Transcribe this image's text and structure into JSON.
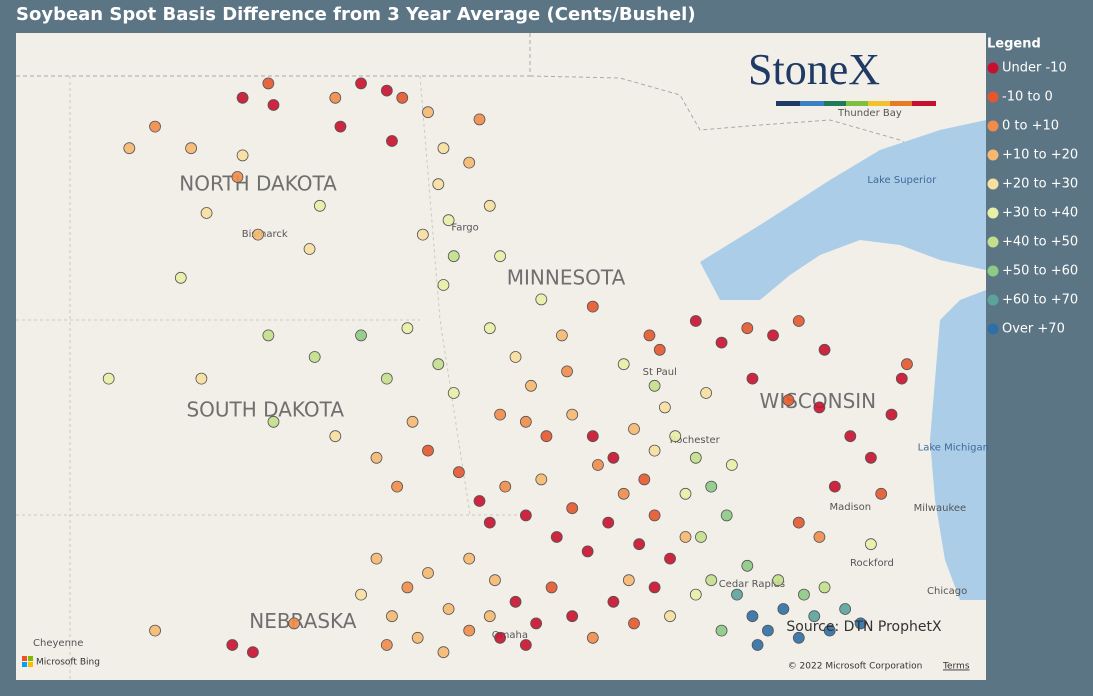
{
  "title": "Soybean Spot Basis Difference from 3 Year Average (Cents/Bushel)",
  "logo": "StoneX",
  "legend": {
    "title": "Legend",
    "items": [
      {
        "label": "Under -10",
        "color": "#c8102e"
      },
      {
        "label": "-10 to 0",
        "color": "#e4572e"
      },
      {
        "label": "0 to +10",
        "color": "#ef8c4b"
      },
      {
        "label": "+10 to +20",
        "color": "#f6b870"
      },
      {
        "label": "+20 to +30",
        "color": "#f7df9f"
      },
      {
        "label": "+30 to +40",
        "color": "#e8f0a6"
      },
      {
        "label": "+40 to +50",
        "color": "#c3df8c"
      },
      {
        "label": "+50 to +60",
        "color": "#8dca86"
      },
      {
        "label": "+60 to +70",
        "color": "#5ba39c"
      },
      {
        "label": "Over +70",
        "color": "#2d6fa6"
      }
    ]
  },
  "map": {
    "labels": [
      {
        "text": "NORTH DAKOTA",
        "lon": -100.5,
        "lat": 47.49,
        "kind": "state"
      },
      {
        "text": "SOUTH DAKOTA",
        "lon": -100.36,
        "lat": 44.35,
        "kind": "state"
      },
      {
        "text": "MINNESOTA",
        "lon": -94.52,
        "lat": 46.18,
        "kind": "state"
      },
      {
        "text": "WISCONSIN",
        "lon": -89.63,
        "lat": 44.47,
        "kind": "state"
      },
      {
        "text": "NEBRASKA",
        "lon": -99.63,
        "lat": 41.41,
        "kind": "state"
      },
      {
        "text": "Bismarck",
        "lon": -100.37,
        "lat": 46.81,
        "kind": "city"
      },
      {
        "text": "Fargo",
        "lon": -96.48,
        "lat": 46.9,
        "kind": "city"
      },
      {
        "text": "St Paul",
        "lon": -92.7,
        "lat": 44.89,
        "kind": "city"
      },
      {
        "text": "Rochester",
        "lon": -92.02,
        "lat": 43.95,
        "kind": "city"
      },
      {
        "text": "Thunder Bay",
        "lon": -88.62,
        "lat": 48.49,
        "kind": "city"
      },
      {
        "text": "Lake Superior",
        "lon": -88.0,
        "lat": 47.56,
        "kind": "water"
      },
      {
        "text": "Lake Michigan",
        "lon": -87.0,
        "lat": 43.84,
        "kind": "water"
      },
      {
        "text": "Milwaukee",
        "lon": -87.26,
        "lat": 43.0,
        "kind": "city"
      },
      {
        "text": "Madison",
        "lon": -89.0,
        "lat": 43.02,
        "kind": "city"
      },
      {
        "text": "Rockford",
        "lon": -88.58,
        "lat": 42.24,
        "kind": "city"
      },
      {
        "text": "Chicago",
        "lon": -87.12,
        "lat": 41.85,
        "kind": "city"
      },
      {
        "text": "Cedar Rapids",
        "lon": -90.91,
        "lat": 41.95,
        "kind": "city"
      },
      {
        "text": "Omaha",
        "lon": -95.61,
        "lat": 41.24,
        "kind": "city"
      },
      {
        "text": "Cheyenne",
        "lon": -104.38,
        "lat": 41.13,
        "kind": "city"
      }
    ],
    "source": "Source: DTN ProphetX",
    "copyright": "© 2022 Microsoft Corporation",
    "terms": "Terms",
    "provider": "Microsoft Bing",
    "points": [
      [
        -98.5,
        48.9,
        0
      ],
      [
        -98.0,
        48.8,
        0
      ],
      [
        -97.7,
        48.7,
        1
      ],
      [
        -98.9,
        48.3,
        0
      ],
      [
        -97.9,
        48.1,
        0
      ],
      [
        -99.0,
        48.7,
        2
      ],
      [
        -100.3,
        48.9,
        1
      ],
      [
        -100.8,
        48.7,
        0
      ],
      [
        -100.2,
        48.6,
        0
      ],
      [
        -102.5,
        48.3,
        2
      ],
      [
        -101.8,
        48.0,
        3
      ],
      [
        -100.9,
        47.6,
        2
      ],
      [
        -101.5,
        47.1,
        4
      ],
      [
        -100.5,
        46.8,
        3
      ],
      [
        -99.3,
        47.2,
        5
      ],
      [
        -99.5,
        46.6,
        4
      ],
      [
        -102.0,
        46.2,
        5
      ],
      [
        -103.0,
        48.0,
        3
      ],
      [
        -100.8,
        47.9,
        4
      ],
      [
        -97.2,
        48.5,
        3
      ],
      [
        -96.9,
        48.0,
        4
      ],
      [
        -97.0,
        47.5,
        4
      ],
      [
        -96.8,
        47.0,
        5
      ],
      [
        -96.7,
        46.5,
        6
      ],
      [
        -96.9,
        46.1,
        5
      ],
      [
        -97.3,
        46.8,
        4
      ],
      [
        -96.4,
        47.8,
        3
      ],
      [
        -96.2,
        48.4,
        2
      ],
      [
        -96.0,
        47.2,
        4
      ],
      [
        -95.8,
        46.5,
        5
      ],
      [
        -100.3,
        45.4,
        6
      ],
      [
        -99.4,
        45.1,
        6
      ],
      [
        -98.5,
        45.4,
        7
      ],
      [
        -98.0,
        44.8,
        6
      ],
      [
        -97.6,
        45.5,
        5
      ],
      [
        -97.0,
        45.0,
        6
      ],
      [
        -96.7,
        44.6,
        5
      ],
      [
        -100.2,
        44.2,
        6
      ],
      [
        -99.0,
        44.0,
        4
      ],
      [
        -98.2,
        43.7,
        3
      ],
      [
        -97.8,
        43.3,
        2
      ],
      [
        -97.2,
        43.8,
        1
      ],
      [
        -97.5,
        44.2,
        3
      ],
      [
        -103.4,
        44.8,
        5
      ],
      [
        -101.6,
        44.8,
        4
      ],
      [
        -96.0,
        45.5,
        5
      ],
      [
        -95.5,
        45.1,
        4
      ],
      [
        -95.2,
        44.7,
        3
      ],
      [
        -95.8,
        44.3,
        2
      ],
      [
        -95.0,
        45.9,
        5
      ],
      [
        -94.6,
        45.4,
        3
      ],
      [
        -94.0,
        45.8,
        1
      ],
      [
        -94.5,
        44.9,
        2
      ],
      [
        -96.6,
        43.5,
        1
      ],
      [
        -96.2,
        43.1,
        0
      ],
      [
        -96.0,
        42.8,
        0
      ],
      [
        -95.7,
        43.3,
        2
      ],
      [
        -95.3,
        42.9,
        0
      ],
      [
        -95.0,
        43.4,
        3
      ],
      [
        -94.7,
        42.6,
        0
      ],
      [
        -94.4,
        43.0,
        1
      ],
      [
        -94.1,
        42.4,
        0
      ],
      [
        -93.7,
        42.8,
        0
      ],
      [
        -93.4,
        43.2,
        2
      ],
      [
        -93.1,
        42.5,
        0
      ],
      [
        -92.8,
        42.9,
        1
      ],
      [
        -96.4,
        42.3,
        3
      ],
      [
        -95.9,
        42.0,
        3
      ],
      [
        -95.5,
        41.7,
        0
      ],
      [
        -95.1,
        41.4,
        0
      ],
      [
        -94.8,
        41.9,
        1
      ],
      [
        -94.4,
        41.5,
        0
      ],
      [
        -94.0,
        41.2,
        2
      ],
      [
        -93.6,
        41.7,
        0
      ],
      [
        -93.2,
        41.4,
        1
      ],
      [
        -92.8,
        41.9,
        0
      ],
      [
        -92.5,
        42.3,
        0
      ],
      [
        -95.3,
        44.2,
        2
      ],
      [
        -94.9,
        44.0,
        1
      ],
      [
        -94.4,
        44.3,
        3
      ],
      [
        -94.0,
        44.0,
        0
      ],
      [
        -93.6,
        43.7,
        0
      ],
      [
        -93.2,
        44.1,
        3
      ],
      [
        -92.8,
        43.8,
        4
      ],
      [
        -93.9,
        43.6,
        2
      ],
      [
        -92.4,
        44.0,
        5
      ],
      [
        -92.0,
        43.7,
        6
      ],
      [
        -91.7,
        43.3,
        7
      ],
      [
        -91.4,
        42.9,
        7
      ],
      [
        -92.2,
        43.2,
        5
      ],
      [
        -91.9,
        42.6,
        6
      ],
      [
        -91.3,
        43.6,
        5
      ],
      [
        -92.6,
        44.4,
        4
      ],
      [
        -91.8,
        44.6,
        4
      ],
      [
        -91.2,
        41.8,
        8
      ],
      [
        -90.9,
        41.5,
        9
      ],
      [
        -90.6,
        41.3,
        9
      ],
      [
        -90.3,
        41.6,
        9
      ],
      [
        -90.0,
        41.2,
        9
      ],
      [
        -89.7,
        41.5,
        8
      ],
      [
        -89.4,
        41.3,
        9
      ],
      [
        -89.1,
        41.6,
        8
      ],
      [
        -88.8,
        41.4,
        9
      ],
      [
        -90.8,
        41.1,
        9
      ],
      [
        -91.5,
        41.3,
        7
      ],
      [
        -89.9,
        41.8,
        7
      ],
      [
        -90.4,
        42.0,
        6
      ],
      [
        -91.0,
        42.2,
        7
      ],
      [
        -89.5,
        41.9,
        6
      ],
      [
        -92.0,
        45.6,
        0
      ],
      [
        -91.5,
        45.3,
        0
      ],
      [
        -91.0,
        45.5,
        1
      ],
      [
        -90.5,
        45.4,
        0
      ],
      [
        -90.0,
        45.6,
        1
      ],
      [
        -89.5,
        45.2,
        0
      ],
      [
        -90.9,
        44.8,
        0
      ],
      [
        -90.2,
        44.5,
        1
      ],
      [
        -89.6,
        44.4,
        0
      ],
      [
        -89.0,
        44.0,
        0
      ],
      [
        -88.6,
        43.7,
        0
      ],
      [
        -88.2,
        44.3,
        0
      ],
      [
        -88.0,
        44.8,
        0
      ],
      [
        -87.9,
        45.0,
        1
      ],
      [
        -89.3,
        43.3,
        0
      ],
      [
        -90.0,
        42.8,
        1
      ],
      [
        -89.6,
        42.6,
        2
      ],
      [
        -88.6,
        42.5,
        5
      ],
      [
        -88.4,
        43.2,
        1
      ],
      [
        -98.2,
        42.3,
        3
      ],
      [
        -97.6,
        41.9,
        2
      ],
      [
        -97.2,
        42.1,
        3
      ],
      [
        -96.8,
        41.6,
        3
      ],
      [
        -97.9,
        41.5,
        3
      ],
      [
        -98.5,
        41.8,
        4
      ],
      [
        -96.4,
        41.3,
        2
      ],
      [
        -97.4,
        41.2,
        3
      ],
      [
        -98.0,
        41.1,
        2
      ],
      [
        -96.9,
        41.0,
        3
      ],
      [
        -101.0,
        41.1,
        0
      ],
      [
        -100.6,
        41.0,
        0
      ],
      [
        -102.5,
        41.3,
        3
      ],
      [
        -99.8,
        41.4,
        2
      ],
      [
        -92.7,
        45.2,
        1
      ],
      [
        -92.9,
        45.4,
        1
      ],
      [
        -93.4,
        45.0,
        5
      ],
      [
        -92.8,
        44.7,
        6
      ],
      [
        -95.8,
        41.2,
        0
      ],
      [
        -95.3,
        41.1,
        0
      ],
      [
        -96.0,
        41.5,
        3
      ],
      [
        -93.3,
        42.0,
        3
      ],
      [
        -92.5,
        41.5,
        4
      ],
      [
        -92.0,
        41.8,
        5
      ],
      [
        -91.7,
        42.0,
        6
      ],
      [
        -92.2,
        42.6,
        3
      ],
      [
        -93.0,
        43.4,
        1
      ]
    ]
  }
}
